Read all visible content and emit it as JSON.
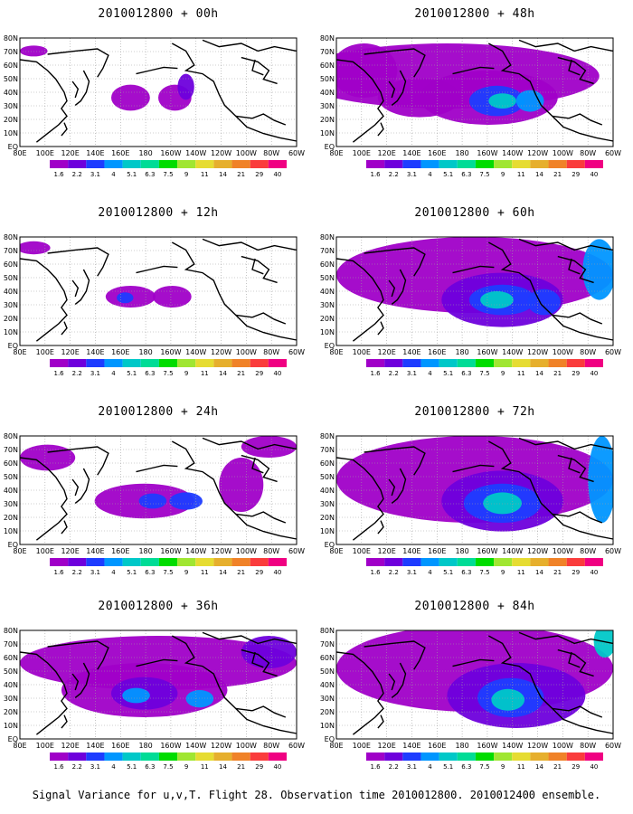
{
  "panels": [
    {
      "title": "2010012800 + 00h"
    },
    {
      "title": "2010012800 + 48h"
    },
    {
      "title": "2010012800 + 12h"
    },
    {
      "title": "2010012800 + 60h"
    },
    {
      "title": "2010012800 + 24h"
    },
    {
      "title": "2010012800 + 72h"
    },
    {
      "title": "2010012800 + 36h"
    },
    {
      "title": "2010012800 + 84h"
    }
  ],
  "lat_labels": [
    "80N",
    "70N",
    "60N",
    "50N",
    "40N",
    "30N",
    "20N",
    "10N",
    "EQ"
  ],
  "lon_labels": [
    "80E",
    "100E",
    "120E",
    "140E",
    "160E",
    "180",
    "160W",
    "140W",
    "120W",
    "100W",
    "80W",
    "60W"
  ],
  "colorbar": {
    "labels": [
      "1.6",
      "2.2",
      "3.1",
      "4",
      "5.1",
      "6.3",
      "7.5",
      "9",
      "11",
      "14",
      "21",
      "29",
      "40"
    ],
    "colors": [
      "#a000c8",
      "#6e00dc",
      "#1e3cff",
      "#0096ff",
      "#00c8c8",
      "#00dc96",
      "#00dc00",
      "#a0e632",
      "#e6dc32",
      "#e6af2d",
      "#f08228",
      "#fa3c3c",
      "#f00082"
    ]
  },
  "footer": "Signal Variance for u,v,T. Flight 28. Observation time 2010012800. 2010012400 ensemble."
}
